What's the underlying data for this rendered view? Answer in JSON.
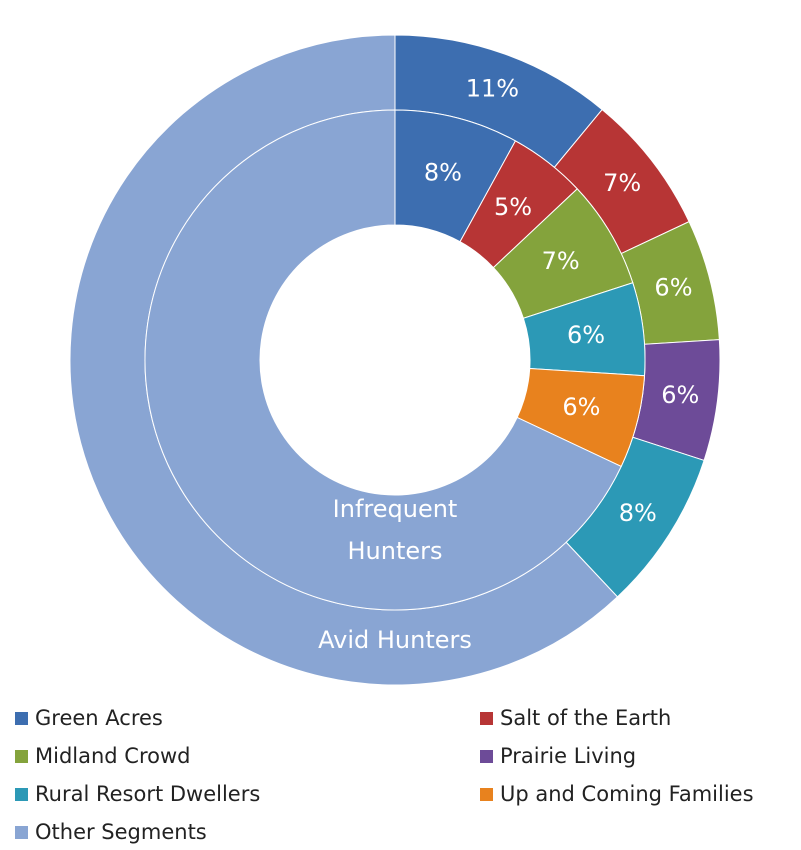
{
  "chart_data": {
    "type": "donut",
    "categories": [
      "Green Acres",
      "Salt of the Earth",
      "Midland Crowd",
      "Prairie Living",
      "Rural Resort Dwellers",
      "Up and Coming Families",
      "Other Segments"
    ],
    "colors": [
      "#3d6eb0",
      "#b73535",
      "#84a33c",
      "#6d4b98",
      "#2c99b6",
      "#e8821e",
      "#89a5d3"
    ],
    "series": [
      {
        "name": "Avid Hunters",
        "values": [
          11,
          7,
          6,
          6,
          8,
          0,
          62
        ],
        "value_labels": [
          "11%",
          "7%",
          "6%",
          "6%",
          "8%",
          null,
          null
        ]
      },
      {
        "name": "Infrequent Hunters",
        "values": [
          8,
          5,
          7,
          0,
          6,
          6,
          68
        ],
        "value_labels": [
          "8%",
          "5%",
          "7%",
          null,
          "6%",
          "6%",
          null
        ]
      }
    ],
    "legend": "bottom"
  }
}
